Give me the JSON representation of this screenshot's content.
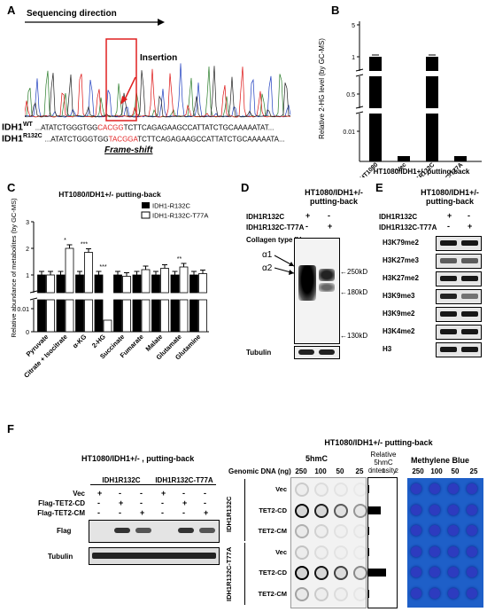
{
  "panelA": {
    "label": "A",
    "direction": "Sequencing direction",
    "insertion": "Insertion",
    "wt_label": "IDH1",
    "wt_sup": "WT",
    "wt_pre": "...ATATCTGGGTGG",
    "wt_red": "CACGG",
    "wt_post": "TCTTCAGAGAAGCCATTATCTGCAAAAATAT...",
    "mut_label": "IDH1",
    "mut_sup": "R132C",
    "mut_pre": "...ATATCTGGGTGG",
    "mut_red": "TACGGA",
    "mut_post": "TCTTCAGAGAAGCCATTATCTGCAAAAATA...",
    "frameshift": "Frame-shift"
  },
  "panelB": {
    "label": "B",
    "ylabel": "Relative 2-HG level (by GC-MS)",
    "group_label": "HT1080/IDH1+/- putting-back",
    "bars": [
      {
        "category": "HT1080",
        "value": 1.0
      },
      {
        "category": "Vec",
        "value": 0.0015
      },
      {
        "category": "IDH1R132C",
        "value": 1.0
      },
      {
        "category": "IDH1R132C-T77A",
        "value": 0.0015
      }
    ],
    "ticks": [
      "5",
      "1",
      "0.5",
      "0.01"
    ]
  },
  "panelC": {
    "label": "C",
    "title": "HT1080/IDH1+/- putting-back",
    "ylabel": "Relative abundance of metabolites (by GC-MS)",
    "legend": [
      "IDH1-R132C",
      "IDH1-R132C-T77A"
    ],
    "categories": [
      "Pyruvate",
      "Citrate + Isocitrate",
      "α-KG",
      "2-HG",
      "Succinate",
      "Fumarate",
      "Malate",
      "Glutamate",
      "Glutamine"
    ],
    "r132c": [
      1.0,
      1.0,
      1.0,
      1.0,
      1.0,
      1.0,
      1.0,
      1.0,
      1.0
    ],
    "t77a": [
      1.0,
      2.0,
      1.85,
      0.005,
      0.95,
      1.2,
      1.25,
      1.3,
      1.05
    ],
    "sig": [
      "",
      "*",
      "***",
      "***",
      "",
      "",
      "",
      "**",
      ""
    ],
    "ticks": [
      "3",
      "2",
      "1",
      "0.01",
      "0"
    ]
  },
  "panelD": {
    "label": "D",
    "title1": "HT1080/IDH1+/-",
    "title2": "putting-back",
    "row1": "IDH1R132C",
    "row2": "IDH1R132C-T77A",
    "row1_marks": [
      "+",
      "-"
    ],
    "row2_marks": [
      "-",
      "+"
    ],
    "protein": "Collagen type IV",
    "alpha1": "α1",
    "alpha2": "α2",
    "mw": [
      "250kD",
      "180kD",
      "130kD"
    ],
    "loading": "Tubulin"
  },
  "panelE": {
    "label": "E",
    "title1": "HT1080/IDH1+/-",
    "title2": "putting-back",
    "row1": "IDH1R132C",
    "row2": "IDH1R132C-T77A",
    "row1_marks": [
      "+",
      "-"
    ],
    "row2_marks": [
      "-",
      "+"
    ],
    "blots": [
      "H3K79me2",
      "H3K27me3",
      "H3K27me2",
      "H3K9me3",
      "H3K9me2",
      "H3K4me2",
      "H3"
    ]
  },
  "panelF": {
    "label": "F",
    "wb_title": "HT1080/IDH1+/- , putting-back",
    "group1": "IDH1R132C",
    "group2": "IDH1R132C-T77A",
    "rows": [
      "Vec",
      "Flag-TET2-CD",
      "Flag-TET2-CM"
    ],
    "marks": [
      [
        "+",
        "-",
        "-",
        "+",
        "-",
        "-"
      ],
      [
        "-",
        "+",
        "-",
        "-",
        "+",
        "-"
      ],
      [
        "-",
        "-",
        "+",
        "-",
        "-",
        "+"
      ]
    ],
    "blots": [
      "Flag",
      "Tubulin"
    ],
    "dot_title": "HT1080/IDH1+/- putting-back",
    "genomic": "Genomic DNA (ng)",
    "hmc": "5hmC",
    "rel": "Relative 5hmC intensity",
    "rel_ticks": [
      "0",
      "1",
      "2"
    ],
    "mb": "Methylene Blue",
    "amounts": [
      "250",
      "100",
      "50",
      "25"
    ],
    "dot_rows": [
      "Vec",
      "TET2-CD",
      "TET2-CM",
      "Vec",
      "TET2-CD",
      "TET2-CM"
    ],
    "dot_group1": "IDH1R132C",
    "dot_group2": "IDH1R132C-T77A",
    "rel_values": [
      0.05,
      1.0,
      0.05,
      0.05,
      1.4,
      0.05
    ]
  }
}
